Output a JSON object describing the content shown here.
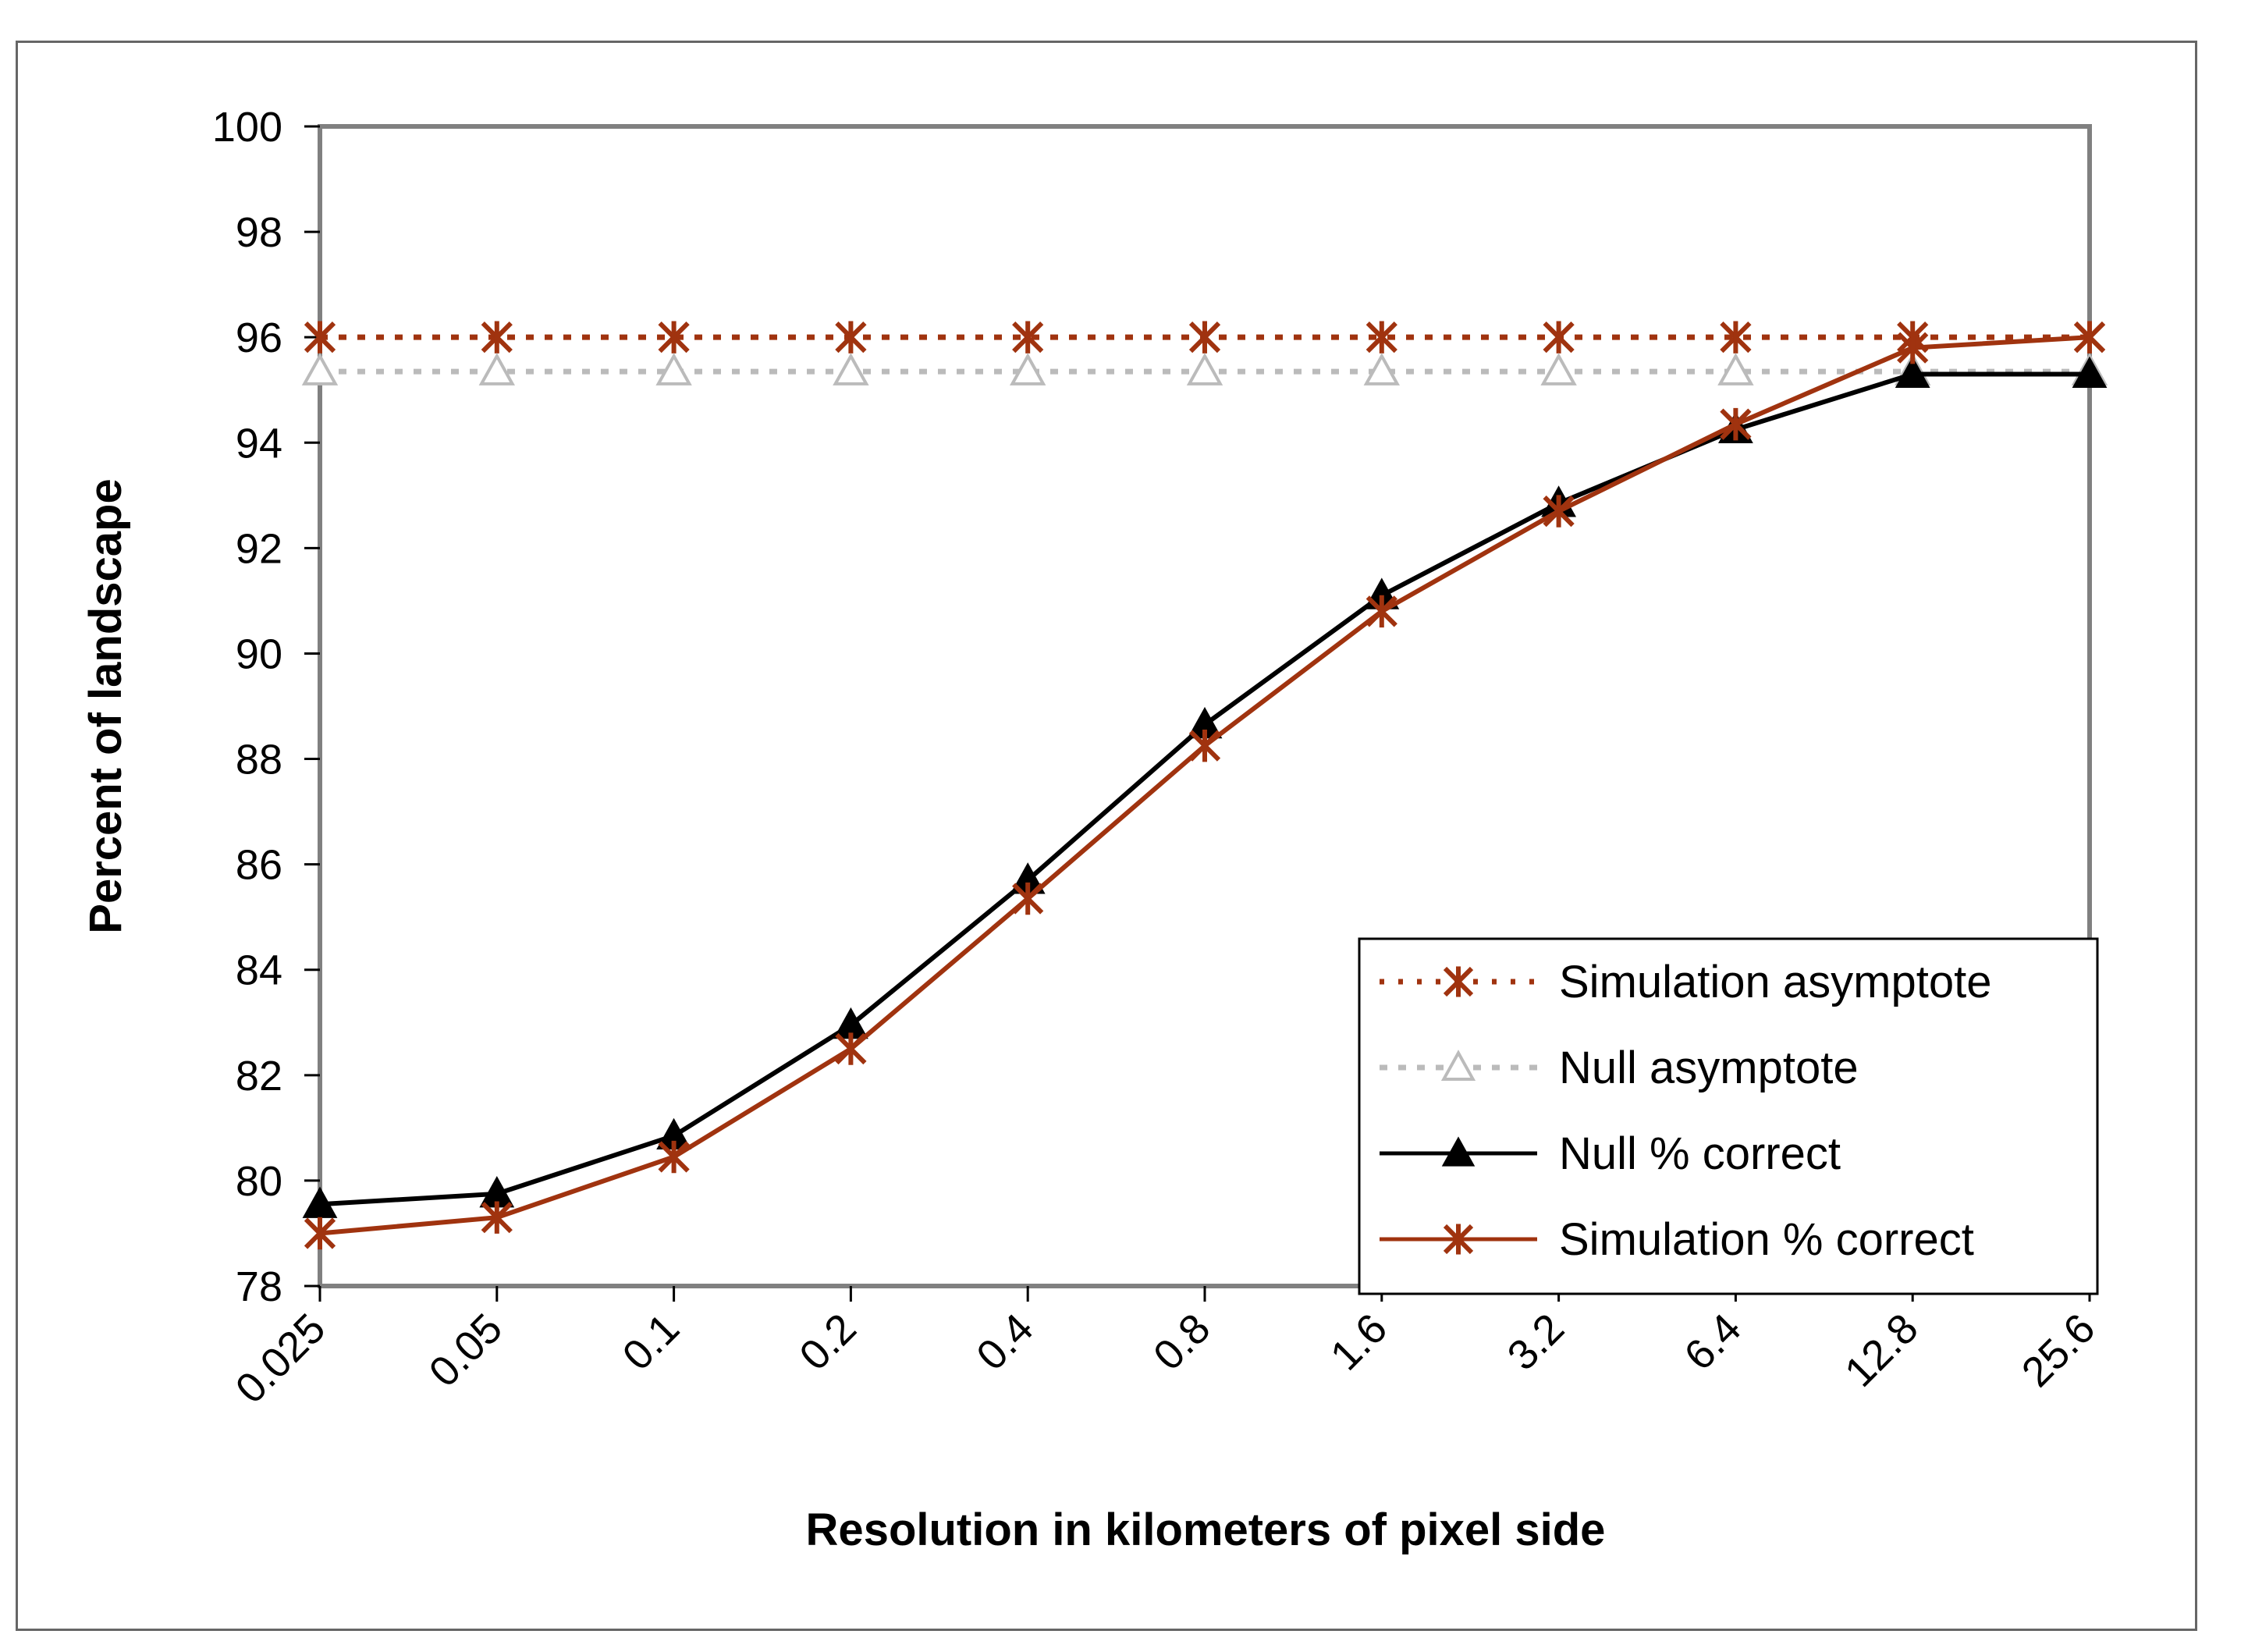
{
  "chart_data": {
    "type": "line",
    "xlabel": "Resolution in kilometers of pixel side",
    "ylabel": "Percent of landscape",
    "x": [
      "0.025",
      "0.05",
      "0.1",
      "0.2",
      "0.4",
      "0.8",
      "1.6",
      "3.2",
      "6.4",
      "12.8",
      "25.6"
    ],
    "ylim": [
      78,
      100
    ],
    "yticks": [
      "78",
      "80",
      "82",
      "84",
      "86",
      "88",
      "90",
      "92",
      "94",
      "96",
      "98",
      "100"
    ],
    "grid": false,
    "legend_position": "bottom-right",
    "series": [
      {
        "name": "Simulation asymptote",
        "values": [
          96,
          96,
          96,
          96,
          96,
          96,
          96,
          96,
          96,
          96,
          96
        ],
        "color": "#a0330f",
        "line": "dotted",
        "marker": "asterisk"
      },
      {
        "name": "Null asymptote",
        "values": [
          95.35,
          95.35,
          95.35,
          95.35,
          95.35,
          95.35,
          95.35,
          95.35,
          95.35,
          95.35,
          95.35
        ],
        "color": "#bbbbbb",
        "line": "dotted",
        "marker": "triangle-open"
      },
      {
        "name": "Null % correct",
        "values": [
          79.55,
          79.75,
          80.85,
          82.95,
          85.7,
          88.65,
          91.1,
          92.85,
          94.25,
          95.3,
          95.3
        ],
        "color": "#000000",
        "line": "solid",
        "marker": "triangle-filled"
      },
      {
        "name": "Simulation % correct",
        "values": [
          79.0,
          79.3,
          80.45,
          82.5,
          85.35,
          88.25,
          90.8,
          92.7,
          94.35,
          95.8,
          96.0
        ],
        "color": "#a0330f",
        "line": "solid",
        "marker": "asterisk"
      }
    ]
  }
}
